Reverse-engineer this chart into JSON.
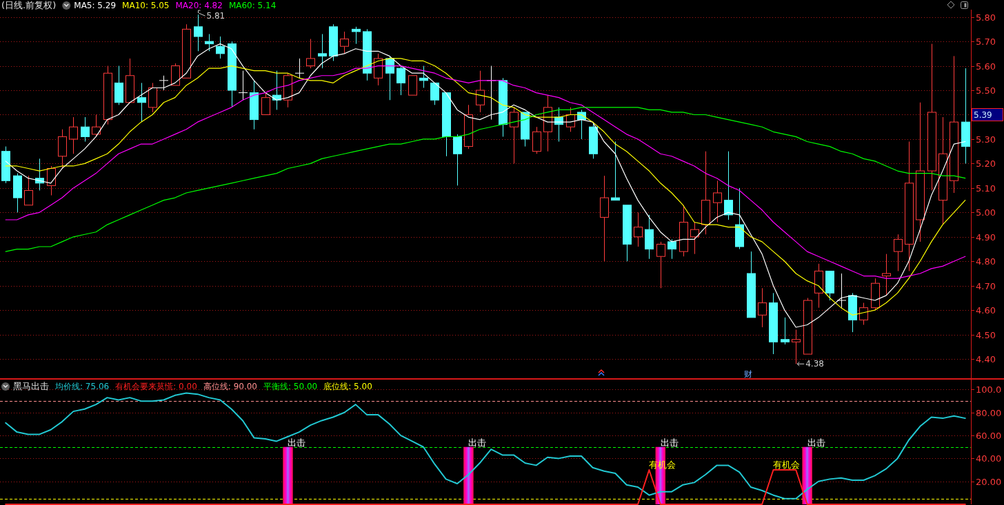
{
  "chart_data": [
    {
      "type": "candlestick",
      "title": "(日线.前复权)",
      "categories": [
        null,
        null,
        null,
        null,
        null,
        null,
        null,
        null,
        null,
        null,
        null,
        null,
        null,
        null,
        null,
        null,
        null,
        null,
        null,
        null,
        null,
        null,
        null,
        null,
        null,
        null,
        null,
        null,
        null,
        null,
        null,
        null,
        null,
        null,
        null,
        null,
        null,
        null,
        null,
        null,
        null,
        null,
        null,
        null,
        null,
        null,
        null,
        null,
        null,
        null,
        null,
        null,
        null,
        null,
        null,
        null,
        null,
        null,
        null,
        null,
        null,
        null,
        null,
        null,
        null,
        null,
        null,
        null,
        null,
        null,
        null,
        null,
        null,
        null,
        null,
        null,
        null,
        null,
        null,
        null,
        null,
        null,
        null,
        null,
        null,
        null
      ],
      "ohlc": [
        [
          5.25,
          5.27,
          5.12,
          5.13
        ],
        [
          5.15,
          5.16,
          5.0,
          5.06
        ],
        [
          5.03,
          5.15,
          5.03,
          5.09
        ],
        [
          5.14,
          5.22,
          5.09,
          5.12
        ],
        [
          5.11,
          5.19,
          5.07,
          5.18
        ],
        [
          5.23,
          5.34,
          5.18,
          5.31
        ],
        [
          5.3,
          5.39,
          5.24,
          5.35
        ],
        [
          5.35,
          5.39,
          5.29,
          5.31
        ],
        [
          5.32,
          5.4,
          5.31,
          5.35
        ],
        [
          5.38,
          5.6,
          5.36,
          5.57
        ],
        [
          5.53,
          5.6,
          5.44,
          5.45
        ],
        [
          5.45,
          5.63,
          5.45,
          5.56
        ],
        [
          5.47,
          5.53,
          5.37,
          5.45
        ],
        [
          5.43,
          5.53,
          5.41,
          5.51
        ],
        [
          5.54,
          5.56,
          5.5,
          5.54
        ],
        [
          5.52,
          5.61,
          5.52,
          5.6
        ],
        [
          5.55,
          5.77,
          5.55,
          5.75
        ],
        [
          5.76,
          5.81,
          5.66,
          5.72
        ],
        [
          5.7,
          5.73,
          5.66,
          5.69
        ],
        [
          5.68,
          5.72,
          5.63,
          5.65
        ],
        [
          5.69,
          5.7,
          5.43,
          5.5
        ],
        [
          5.49,
          5.58,
          5.46,
          5.49
        ],
        [
          5.49,
          5.54,
          5.34,
          5.38
        ],
        [
          5.4,
          5.49,
          5.4,
          5.47
        ],
        [
          5.48,
          5.58,
          5.42,
          5.46
        ],
        [
          5.46,
          5.57,
          5.43,
          5.56
        ],
        [
          5.57,
          5.63,
          5.55,
          5.57
        ],
        [
          5.6,
          5.71,
          5.59,
          5.63
        ],
        [
          5.65,
          5.73,
          5.59,
          5.64
        ],
        [
          5.76,
          5.77,
          5.62,
          5.64
        ],
        [
          5.68,
          5.74,
          5.65,
          5.71
        ],
        [
          5.75,
          5.76,
          5.69,
          5.74
        ],
        [
          5.74,
          5.75,
          5.54,
          5.57
        ],
        [
          5.55,
          5.65,
          5.52,
          5.63
        ],
        [
          5.63,
          5.64,
          5.46,
          5.57
        ],
        [
          5.59,
          5.6,
          5.48,
          5.53
        ],
        [
          5.48,
          5.56,
          5.48,
          5.56
        ],
        [
          5.55,
          5.6,
          5.51,
          5.54
        ],
        [
          5.53,
          5.53,
          5.44,
          5.46
        ],
        [
          5.49,
          5.49,
          5.23,
          5.31
        ],
        [
          5.31,
          5.32,
          5.11,
          5.24
        ],
        [
          5.27,
          5.44,
          5.26,
          5.4
        ],
        [
          5.44,
          5.58,
          5.41,
          5.5
        ],
        [
          5.54,
          5.6,
          5.38,
          5.54
        ],
        [
          5.54,
          5.55,
          5.31,
          5.36
        ],
        [
          5.35,
          5.43,
          5.2,
          5.41
        ],
        [
          5.41,
          5.41,
          5.27,
          5.3
        ],
        [
          5.25,
          5.35,
          5.24,
          5.33
        ],
        [
          5.33,
          5.48,
          5.25,
          5.43
        ],
        [
          5.39,
          5.43,
          5.29,
          5.36
        ],
        [
          5.35,
          5.43,
          5.33,
          5.4
        ],
        [
          5.41,
          5.42,
          5.3,
          5.38
        ],
        [
          5.35,
          5.37,
          5.22,
          5.24
        ],
        [
          4.98,
          5.15,
          4.8,
          5.06
        ],
        [
          5.06,
          5.29,
          5.05,
          5.05
        ],
        [
          5.03,
          5.03,
          4.8,
          4.87
        ],
        [
          4.9,
          5.0,
          4.86,
          4.94
        ],
        [
          4.93,
          4.99,
          4.81,
          4.85
        ],
        [
          4.82,
          4.88,
          4.69,
          4.87
        ],
        [
          4.88,
          4.89,
          4.81,
          4.85
        ],
        [
          4.84,
          5.03,
          4.82,
          4.96
        ],
        [
          4.9,
          4.96,
          4.83,
          4.93
        ],
        [
          4.95,
          5.25,
          4.91,
          5.05
        ],
        [
          5.04,
          5.13,
          4.96,
          5.08
        ],
        [
          5.05,
          5.25,
          4.97,
          4.99
        ],
        [
          4.95,
          5.1,
          4.85,
          4.86
        ],
        [
          4.75,
          4.84,
          4.57,
          4.57
        ],
        [
          4.58,
          4.69,
          4.53,
          4.63
        ],
        [
          4.63,
          4.67,
          4.42,
          4.47
        ],
        [
          4.48,
          4.57,
          4.46,
          4.47
        ],
        [
          4.47,
          4.52,
          4.38,
          4.48
        ],
        [
          4.42,
          4.65,
          4.42,
          4.64
        ],
        [
          4.67,
          4.79,
          4.61,
          4.76
        ],
        [
          4.76,
          4.76,
          4.64,
          4.67
        ],
        [
          4.64,
          4.75,
          4.61,
          4.64
        ],
        [
          4.66,
          4.67,
          4.51,
          4.56
        ],
        [
          4.56,
          4.63,
          4.54,
          4.61
        ],
        [
          4.61,
          4.73,
          4.6,
          4.71
        ],
        [
          4.74,
          4.83,
          4.66,
          4.75
        ],
        [
          4.84,
          4.91,
          4.76,
          4.89
        ],
        [
          4.87,
          5.29,
          4.76,
          5.12
        ],
        [
          4.97,
          5.45,
          4.88,
          5.17
        ],
        [
          5.17,
          5.69,
          5.09,
          5.41
        ],
        [
          5.05,
          5.39,
          4.95,
          5.24
        ],
        [
          5.13,
          5.64,
          5.08,
          5.37
        ],
        [
          5.37,
          5.59,
          5.2,
          5.27
        ]
      ],
      "series": [
        {
          "name": "MA5: 5.29",
          "type": "line",
          "color": "#ffffff",
          "values": [
            5.21,
            5.17,
            5.14,
            5.13,
            5.12,
            5.18,
            5.22,
            5.26,
            5.31,
            5.38,
            5.4,
            5.45,
            5.48,
            5.51,
            5.51,
            5.53,
            5.57,
            5.64,
            5.67,
            5.69,
            5.67,
            5.6,
            5.54,
            5.49,
            5.46,
            5.47,
            5.49,
            5.56,
            5.61,
            5.64,
            5.65,
            5.67,
            5.66,
            5.66,
            5.64,
            5.6,
            5.57,
            5.57,
            5.53,
            5.49,
            5.42,
            5.39,
            5.38,
            5.4,
            5.41,
            5.44,
            5.42,
            5.39,
            5.37,
            5.37,
            5.37,
            5.38,
            5.37,
            5.29,
            5.24,
            5.14,
            5.05,
            4.98,
            4.92,
            4.88,
            4.89,
            4.89,
            4.94,
            4.98,
            5.0,
            4.99,
            4.91,
            4.83,
            4.7,
            4.6,
            4.53,
            4.54,
            4.57,
            4.61,
            4.65,
            4.66,
            4.65,
            4.64,
            4.66,
            4.71,
            4.8,
            4.93,
            5.07,
            5.17,
            5.28,
            5.29
          ]
        },
        {
          "name": "MA10: 5.05",
          "type": "line",
          "color": "#ffff00",
          "values": [
            5.19,
            5.19,
            5.18,
            5.17,
            5.18,
            5.19,
            5.19,
            5.2,
            5.22,
            5.24,
            5.28,
            5.33,
            5.37,
            5.4,
            5.45,
            5.47,
            5.52,
            5.55,
            5.59,
            5.59,
            5.6,
            5.59,
            5.58,
            5.58,
            5.57,
            5.57,
            5.55,
            5.54,
            5.54,
            5.53,
            5.56,
            5.58,
            5.6,
            5.62,
            5.63,
            5.63,
            5.62,
            5.62,
            5.6,
            5.57,
            5.53,
            5.49,
            5.48,
            5.47,
            5.44,
            5.43,
            5.4,
            5.39,
            5.39,
            5.39,
            5.4,
            5.4,
            5.37,
            5.33,
            5.28,
            5.25,
            5.21,
            5.17,
            5.12,
            5.08,
            5.03,
            4.96,
            4.95,
            4.95,
            4.94,
            4.94,
            4.9,
            4.88,
            4.84,
            4.8,
            4.75,
            4.72,
            4.7,
            4.65,
            4.61,
            4.58,
            4.59,
            4.6,
            4.63,
            4.67,
            4.73,
            4.8,
            4.88,
            4.95,
            5.0,
            5.05
          ]
        },
        {
          "name": "MA20: 4.82",
          "type": "line",
          "color": "#ff00ff",
          "values": [
            4.97,
            4.97,
            4.99,
            5.0,
            5.03,
            5.06,
            5.1,
            5.13,
            5.16,
            5.2,
            5.24,
            5.26,
            5.28,
            5.28,
            5.3,
            5.32,
            5.34,
            5.37,
            5.39,
            5.41,
            5.43,
            5.46,
            5.48,
            5.49,
            5.51,
            5.52,
            5.54,
            5.55,
            5.56,
            5.56,
            5.57,
            5.59,
            5.59,
            5.6,
            5.6,
            5.6,
            5.59,
            5.58,
            5.57,
            5.55,
            5.54,
            5.53,
            5.54,
            5.54,
            5.54,
            5.52,
            5.51,
            5.49,
            5.48,
            5.47,
            5.45,
            5.44,
            5.41,
            5.38,
            5.35,
            5.32,
            5.3,
            5.27,
            5.24,
            5.23,
            5.21,
            5.19,
            5.16,
            5.14,
            5.11,
            5.09,
            5.05,
            5.01,
            4.96,
            4.92,
            4.88,
            4.84,
            4.82,
            4.8,
            4.78,
            4.76,
            4.74,
            4.74,
            4.73,
            4.73,
            4.74,
            4.75,
            4.77,
            4.78,
            4.8,
            4.82
          ]
        },
        {
          "name": "MA60: 5.14",
          "type": "line",
          "color": "#00ff00",
          "values": [
            4.84,
            4.85,
            4.85,
            4.86,
            4.86,
            4.88,
            4.9,
            4.91,
            4.92,
            4.95,
            4.97,
            4.99,
            5.01,
            5.03,
            5.05,
            5.06,
            5.08,
            5.09,
            5.1,
            5.11,
            5.12,
            5.13,
            5.14,
            5.15,
            5.16,
            5.18,
            5.19,
            5.2,
            5.22,
            5.23,
            5.24,
            5.25,
            5.26,
            5.27,
            5.28,
            5.28,
            5.29,
            5.3,
            5.3,
            5.31,
            5.31,
            5.32,
            5.34,
            5.35,
            5.36,
            5.37,
            5.38,
            5.4,
            5.41,
            5.42,
            5.42,
            5.43,
            5.43,
            5.43,
            5.43,
            5.43,
            5.43,
            5.42,
            5.42,
            5.41,
            5.41,
            5.4,
            5.4,
            5.39,
            5.38,
            5.37,
            5.36,
            5.35,
            5.33,
            5.32,
            5.31,
            5.29,
            5.28,
            5.27,
            5.25,
            5.24,
            5.22,
            5.21,
            5.19,
            5.17,
            5.16,
            5.16,
            5.16,
            5.15,
            5.15,
            5.14
          ]
        }
      ],
      "ylim": [
        4.32,
        5.83
      ],
      "yticks": [
        {
          "value": 4.4,
          "label": "4.40"
        },
        {
          "value": 4.5,
          "label": "4.50"
        },
        {
          "value": 4.6,
          "label": "4.60"
        },
        {
          "value": 4.7,
          "label": "4.70"
        },
        {
          "value": 4.8,
          "label": "4.80"
        },
        {
          "value": 4.9,
          "label": "4.90"
        },
        {
          "value": 5.0,
          "label": "5.00"
        },
        {
          "value": 5.1,
          "label": "5.10"
        },
        {
          "value": 5.2,
          "label": "5.20"
        },
        {
          "value": 5.3,
          "label": "5.30"
        },
        {
          "value": 5.4,
          "label": null
        },
        {
          "value": 5.5,
          "label": "5.50"
        },
        {
          "value": 5.6,
          "label": "5.60"
        },
        {
          "value": 5.7,
          "label": "5.70"
        },
        {
          "value": 5.8,
          "label": "5.80"
        }
      ],
      "grid": "y",
      "legend": "top left",
      "tick_labels": "y",
      "annotations": [
        "5.81",
        "4.38",
        "5.39",
        "财"
      ]
    },
    {
      "type": "line",
      "title": "黑马出击",
      "categories": [
        null,
        null,
        null,
        null,
        null,
        null,
        null,
        null,
        null,
        null,
        null,
        null,
        null,
        null,
        null,
        null,
        null,
        null,
        null,
        null,
        null,
        null,
        null,
        null,
        null,
        null,
        null,
        null,
        null,
        null,
        null,
        null,
        null,
        null,
        null,
        null,
        null,
        null,
        null,
        null,
        null,
        null,
        null,
        null,
        null,
        null,
        null,
        null,
        null,
        null,
        null,
        null,
        null,
        null,
        null,
        null,
        null,
        null,
        null,
        null,
        null,
        null,
        null,
        null,
        null,
        null,
        null,
        null,
        null,
        null,
        null,
        null,
        null,
        null,
        null,
        null,
        null,
        null,
        null,
        null,
        null,
        null,
        null,
        null,
        null,
        null
      ],
      "series": [
        {
          "type": "bar",
          "color": "#ff1050",
          "values": [
            null,
            null,
            null,
            null,
            null,
            null,
            null,
            null,
            null,
            null,
            null,
            null,
            null,
            null,
            null,
            null,
            null,
            null,
            null,
            null,
            null,
            null,
            null,
            null,
            null,
            50,
            null,
            null,
            null,
            null,
            null,
            null,
            null,
            null,
            null,
            null,
            null,
            null,
            null,
            null,
            null,
            50,
            null,
            null,
            null,
            null,
            null,
            null,
            null,
            null,
            null,
            null,
            null,
            null,
            null,
            null,
            null,
            null,
            50,
            null,
            null,
            null,
            null,
            null,
            null,
            null,
            null,
            null,
            null,
            null,
            null,
            50,
            null,
            null,
            null,
            null,
            null,
            null,
            null,
            null,
            null,
            null,
            null,
            null,
            null,
            null
          ],
          "value_labels": [
            null,
            null,
            null,
            null,
            null,
            null,
            null,
            null,
            null,
            null,
            null,
            null,
            null,
            null,
            null,
            null,
            null,
            null,
            null,
            null,
            null,
            null,
            null,
            null,
            null,
            "出击",
            null,
            null,
            null,
            null,
            null,
            null,
            null,
            null,
            null,
            null,
            null,
            null,
            null,
            null,
            null,
            "出击",
            null,
            null,
            null,
            null,
            null,
            null,
            null,
            null,
            null,
            null,
            null,
            null,
            null,
            null,
            null,
            null,
            "出击",
            null,
            null,
            null,
            null,
            null,
            null,
            null,
            null,
            null,
            null,
            null,
            null,
            "出击",
            null,
            null,
            null,
            null,
            null,
            null,
            null,
            null,
            null,
            null,
            null,
            null,
            null,
            null
          ]
        },
        {
          "name": "均价线: 75.06",
          "type": "line",
          "color": "#22c8d2",
          "values": [
            71,
            63,
            61,
            61,
            65,
            72,
            81,
            83,
            87,
            93,
            91,
            93,
            90,
            90,
            91,
            95,
            97,
            96,
            93,
            91,
            83,
            73,
            58,
            57,
            55,
            59,
            63,
            69,
            73,
            76,
            80,
            87,
            78,
            78,
            70,
            60,
            55,
            50,
            35,
            22,
            18,
            26,
            36,
            48,
            43,
            43,
            36,
            34,
            41,
            40,
            42,
            42,
            32,
            29,
            27,
            17,
            15,
            8,
            11,
            11,
            17,
            19,
            26,
            34,
            34,
            28,
            15,
            12,
            8,
            5,
            5,
            13,
            20,
            22,
            23,
            21,
            21,
            25,
            31,
            40,
            56,
            68,
            76,
            75,
            77,
            75
          ]
        },
        {
          "name": "有机会要来莫慌: 0.00",
          "type": "line",
          "color": "#ff2020",
          "values": [
            0,
            0,
            0,
            0,
            0,
            0,
            0,
            0,
            0,
            0,
            0,
            0,
            0,
            0,
            0,
            0,
            0,
            0,
            0,
            0,
            0,
            0,
            0,
            0,
            0,
            0,
            0,
            0,
            0,
            0,
            0,
            0,
            0,
            0,
            0,
            0,
            0,
            0,
            0,
            0,
            0,
            0,
            0,
            0,
            0,
            0,
            0,
            0,
            0,
            0,
            0,
            0,
            0,
            0,
            0,
            0,
            0,
            30,
            0,
            0,
            0,
            0,
            0,
            0,
            0,
            0,
            0,
            0,
            30,
            30,
            30,
            0,
            0,
            0,
            0,
            0,
            0,
            0,
            0,
            0,
            0,
            0,
            0,
            0,
            0,
            0
          ],
          "value_labels": [
            null,
            null,
            null,
            null,
            null,
            null,
            null,
            null,
            null,
            null,
            null,
            null,
            null,
            null,
            null,
            null,
            null,
            null,
            null,
            null,
            null,
            null,
            null,
            null,
            null,
            null,
            null,
            null,
            null,
            null,
            null,
            null,
            null,
            null,
            null,
            null,
            null,
            null,
            null,
            null,
            null,
            null,
            null,
            null,
            null,
            null,
            null,
            null,
            null,
            null,
            null,
            null,
            null,
            null,
            null,
            null,
            null,
            "有机会",
            null,
            null,
            null,
            null,
            null,
            null,
            null,
            null,
            null,
            null,
            "有机会",
            null,
            null,
            null,
            null,
            null,
            null,
            null,
            null,
            null,
            null,
            null,
            null,
            null,
            null,
            null,
            null,
            null
          ]
        }
      ],
      "ref_lines": [
        {
          "axis": "y",
          "value": 90,
          "label": "高位线: 90.00",
          "color": "#ff9090",
          "line_style": "dashed"
        },
        {
          "axis": "y",
          "value": 50,
          "label": "平衡线: 50.00",
          "color": "#00ff00",
          "line_style": "dashed"
        },
        {
          "axis": "y",
          "value": 5,
          "label": "底位线: 5.00",
          "color": "#ffff00",
          "line_style": "dashed"
        }
      ],
      "ylim": [
        0,
        109
      ],
      "yticks": [
        {
          "value": 20,
          "label": "20.00"
        },
        {
          "value": 40,
          "label": "40.00"
        },
        {
          "value": 60,
          "label": "60.00"
        },
        {
          "value": 80,
          "label": "80.00"
        },
        {
          "value": 100,
          "label": "100.0"
        }
      ],
      "grid": "y",
      "legend": "top left",
      "tick_labels": "y"
    }
  ]
}
